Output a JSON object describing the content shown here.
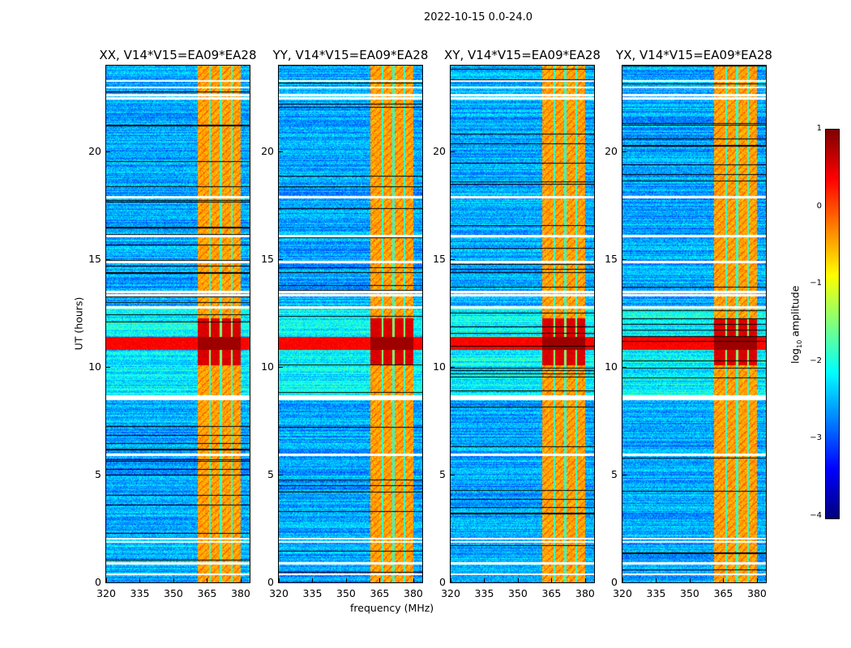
{
  "chart_data": {
    "type": "heatmap",
    "title": "2022-10-15 0.0-24.0",
    "xlabel": "frequency (MHz)",
    "ylabel": "UT (hours)",
    "xlim": [
      320,
      384
    ],
    "ylim": [
      0,
      24
    ],
    "xticks": [
      "320",
      "335",
      "350",
      "365",
      "380"
    ],
    "xtick_values": [
      320,
      335,
      350,
      365,
      380
    ],
    "yticks": [
      "0",
      "5",
      "10",
      "15",
      "20"
    ],
    "ytick_values": [
      0,
      5,
      10,
      15,
      20
    ],
    "panels": [
      {
        "title": "XX, V14*V15=EA09*EA28",
        "strong_band_mhz": [
          360.5,
          380
        ]
      },
      {
        "title": "YY, V14*V15=EA09*EA28",
        "strong_band_mhz": [
          360.5,
          380
        ]
      },
      {
        "title": "XY, V14*V15=EA09*EA28",
        "strong_band_mhz": [
          360.5,
          380
        ]
      },
      {
        "title": "YX, V14*V15=EA09*EA28",
        "strong_band_mhz": [
          360.5,
          380
        ]
      }
    ],
    "rfi_burst_hours": [
      10.8,
      11.4
    ],
    "flagged_hours": [
      0.4,
      0.9,
      1.9,
      2.05,
      5.95,
      8.55,
      8.65,
      12.8,
      13.35,
      13.5,
      14.9,
      16.1,
      17.9,
      22.5,
      22.65,
      23.0,
      23.3
    ],
    "colorbar": {
      "label": "log10 amplitude",
      "label_main": "log",
      "label_sub": "10",
      "label_rest": " amplitude",
      "colormap": "jet",
      "range": [
        -4,
        1
      ],
      "ticks": [
        "−4",
        "−3",
        "−2",
        "−1",
        "0",
        "1"
      ],
      "tick_values": [
        -4,
        -3,
        -2,
        -1,
        0,
        1
      ]
    }
  }
}
